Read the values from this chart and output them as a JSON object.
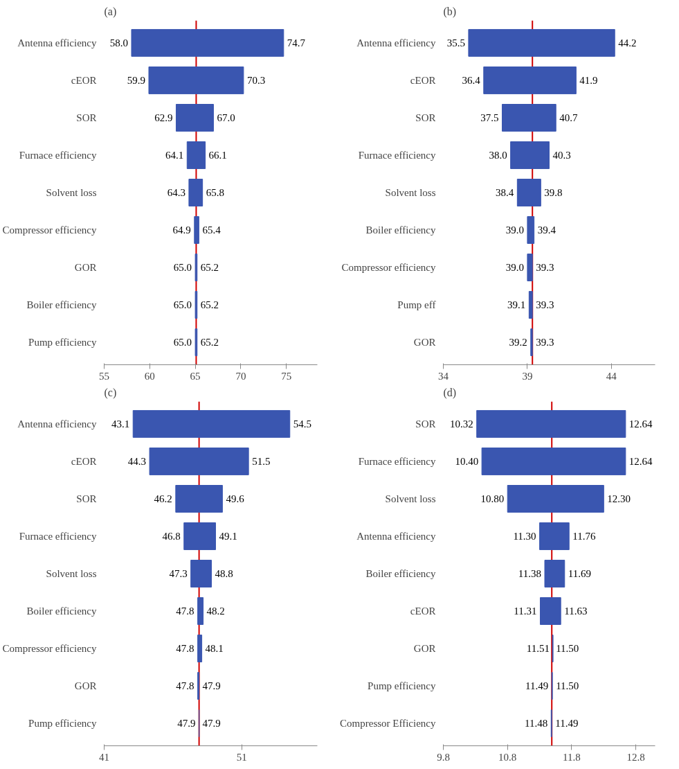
{
  "chart_data": [
    {
      "type": "bar",
      "orientation": "horizontal",
      "title": "(a)",
      "color": "#3a56b0",
      "categories": [
        "Antenna efficiency",
        "cEOR",
        "SOR",
        "Furnace efficiency",
        "Solvent loss",
        "Compressor efficiency",
        "GOR",
        "Boiler efficiency",
        "Pump efficiency"
      ],
      "base": [
        58.0,
        59.9,
        62.9,
        64.1,
        64.3,
        64.9,
        65.0,
        65.0,
        65.0
      ],
      "values": [
        16.7,
        10.4,
        4.1,
        2.0,
        1.5,
        0.5,
        0.2,
        0.2,
        0.2
      ],
      "xlim": [
        55,
        78.4
      ],
      "xticks": [
        55,
        60,
        65,
        70,
        75
      ],
      "ref_lines": [
        {
          "axis": "x",
          "value": 65.1,
          "color": "#d00000"
        }
      ],
      "annotations": [
        {
          "text": "58.0",
          "x": 58.0,
          "y": "Antenna efficiency"
        },
        {
          "text": "74.7",
          "x": 74.7,
          "y": "Antenna efficiency"
        },
        {
          "text": "59.9",
          "x": 59.9,
          "y": "cEOR"
        },
        {
          "text": "70.3",
          "x": 70.3,
          "y": "cEOR"
        },
        {
          "text": "62.9",
          "x": 62.9,
          "y": "SOR"
        },
        {
          "text": "67.0",
          "x": 67.0,
          "y": "SOR"
        },
        {
          "text": "64.1",
          "x": 64.1,
          "y": "Furnace efficiency"
        },
        {
          "text": "66.1",
          "x": 66.1,
          "y": "Furnace efficiency"
        },
        {
          "text": "64.3",
          "x": 64.3,
          "y": "Solvent loss"
        },
        {
          "text": "65.8",
          "x": 65.8,
          "y": "Solvent loss"
        },
        {
          "text": "64.9",
          "x": 64.9,
          "y": "Compressor efficiency"
        },
        {
          "text": "65.4",
          "x": 65.4,
          "y": "Compressor efficiency"
        },
        {
          "text": "65.0",
          "x": 65.0,
          "y": "GOR"
        },
        {
          "text": "65.2",
          "x": 65.2,
          "y": "GOR"
        },
        {
          "text": "65.0",
          "x": 65.0,
          "y": "Boiler efficiency"
        },
        {
          "text": "65.2",
          "x": 65.2,
          "y": "Boiler efficiency"
        },
        {
          "text": "65.0",
          "x": 65.0,
          "y": "Pump efficiency"
        },
        {
          "text": "65.2",
          "x": 65.2,
          "y": "Pump efficiency"
        }
      ]
    },
    {
      "type": "bar",
      "orientation": "horizontal",
      "title": "(b)",
      "color": "#3a56b0",
      "categories": [
        "Antenna efficiency",
        "cEOR",
        "SOR",
        "Furnace efficiency",
        "Solvent loss",
        "Boiler efficiency",
        "Compressor efficiency",
        "Pump eff",
        "GOR"
      ],
      "base": [
        35.5,
        36.4,
        37.5,
        38.0,
        38.4,
        39.0,
        39.0,
        39.1,
        39.2
      ],
      "values": [
        8.7,
        5.5,
        3.2,
        2.3,
        1.4,
        0.4,
        0.3,
        0.2,
        0.1
      ],
      "xlim": [
        34,
        46.6
      ],
      "xticks": [
        34,
        39,
        44
      ],
      "ref_lines": [
        {
          "axis": "x",
          "value": 39.3,
          "color": "#d00000"
        }
      ],
      "annotations": [
        {
          "text": "35.5",
          "x": 35.5,
          "y": "Antenna efficiency"
        },
        {
          "text": "44.2",
          "x": 44.2,
          "y": "Antenna efficiency"
        },
        {
          "text": "36.4",
          "x": 36.4,
          "y": "cEOR"
        },
        {
          "text": "41.9",
          "x": 41.9,
          "y": "cEOR"
        },
        {
          "text": "37.5",
          "x": 37.5,
          "y": "SOR"
        },
        {
          "text": "40.7",
          "x": 40.7,
          "y": "SOR"
        },
        {
          "text": "38.0",
          "x": 38.0,
          "y": "Furnace efficiency"
        },
        {
          "text": "40.3",
          "x": 40.3,
          "y": "Furnace efficiency"
        },
        {
          "text": "38.4",
          "x": 38.4,
          "y": "Solvent loss"
        },
        {
          "text": "39.8",
          "x": 39.8,
          "y": "Solvent loss"
        },
        {
          "text": "39.0",
          "x": 39.0,
          "y": "Boiler efficiency"
        },
        {
          "text": "39.4",
          "x": 39.4,
          "y": "Boiler efficiency"
        },
        {
          "text": "39.0",
          "x": 39.0,
          "y": "Compressor efficiency"
        },
        {
          "text": "39.3",
          "x": 39.3,
          "y": "Compressor efficiency"
        },
        {
          "text": "39.1",
          "x": 39.1,
          "y": "Pump eff"
        },
        {
          "text": "39.3",
          "x": 39.3,
          "y": "Pump eff"
        },
        {
          "text": "39.2",
          "x": 39.2,
          "y": "GOR"
        },
        {
          "text": "39.3",
          "x": 39.3,
          "y": "GOR"
        }
      ]
    },
    {
      "type": "bar",
      "orientation": "horizontal",
      "title": "(c)",
      "color": "#3a56b0",
      "categories": [
        "Antenna efficiency",
        "cEOR",
        "SOR",
        "Furnace efficiency",
        "Solvent loss",
        "Boiler efficiency",
        "Compressor efficiency",
        "GOR",
        "Pump efficiency"
      ],
      "base": [
        43.1,
        44.3,
        46.2,
        46.8,
        47.3,
        47.8,
        47.8,
        47.8,
        47.9
      ],
      "values": [
        11.4,
        7.2,
        3.4,
        2.3,
        1.5,
        0.4,
        0.3,
        0.1,
        0.0
      ],
      "xlim": [
        41,
        56.5
      ],
      "xticks": [
        41,
        51
      ],
      "ref_lines": [
        {
          "axis": "x",
          "value": 47.9,
          "color": "#d00000"
        }
      ],
      "annotations": [
        {
          "text": "43.1",
          "x": 43.1,
          "y": "Antenna efficiency"
        },
        {
          "text": "54.5",
          "x": 54.5,
          "y": "Antenna efficiency"
        },
        {
          "text": "44.3",
          "x": 44.3,
          "y": "cEOR"
        },
        {
          "text": "51.5",
          "x": 51.5,
          "y": "cEOR"
        },
        {
          "text": "46.2",
          "x": 46.2,
          "y": "SOR"
        },
        {
          "text": "49.6",
          "x": 49.6,
          "y": "SOR"
        },
        {
          "text": "46.8",
          "x": 46.8,
          "y": "Furnace efficiency"
        },
        {
          "text": "49.1",
          "x": 49.1,
          "y": "Furnace efficiency"
        },
        {
          "text": "47.3",
          "x": 47.3,
          "y": "Solvent loss"
        },
        {
          "text": "48.8",
          "x": 48.8,
          "y": "Solvent loss"
        },
        {
          "text": "47.8",
          "x": 47.8,
          "y": "Boiler efficiency"
        },
        {
          "text": "48.2",
          "x": 48.2,
          "y": "Boiler efficiency"
        },
        {
          "text": "47.8",
          "x": 47.8,
          "y": "Compressor efficiency"
        },
        {
          "text": "48.1",
          "x": 48.1,
          "y": "Compressor efficiency"
        },
        {
          "text": "47.8",
          "x": 47.8,
          "y": "GOR"
        },
        {
          "text": "47.9",
          "x": 47.9,
          "y": "GOR"
        },
        {
          "text": "47.9",
          "x": 47.9,
          "y": "Pump efficiency"
        },
        {
          "text": "47.9",
          "x": 47.9,
          "y": "Pump efficiency"
        }
      ]
    },
    {
      "type": "bar",
      "orientation": "horizontal",
      "title": "(d)",
      "color": "#3a56b0",
      "categories": [
        "SOR",
        "Furnace efficiency",
        "Solvent loss",
        "Antenna efficiency",
        "Boiler efficiency",
        "cEOR",
        "GOR",
        "Pump efficiency",
        "Compressor Efficiency"
      ],
      "base": [
        10.32,
        10.4,
        10.8,
        11.3,
        11.38,
        11.31,
        11.5,
        11.49,
        11.48
      ],
      "values": [
        2.32,
        2.24,
        1.5,
        0.46,
        0.31,
        0.32,
        0.01,
        0.01,
        0.01
      ],
      "xlim": [
        9.8,
        13.1
      ],
      "xticks": [
        9.8,
        10.8,
        11.8,
        12.8
      ],
      "ref_lines": [
        {
          "axis": "x",
          "value": 11.49,
          "color": "#d00000"
        }
      ],
      "annotations": [
        {
          "text": "10.32",
          "x": 10.32,
          "y": "SOR"
        },
        {
          "text": "12.64",
          "x": 12.64,
          "y": "SOR"
        },
        {
          "text": "10.40",
          "x": 10.4,
          "y": "Furnace efficiency"
        },
        {
          "text": "12.64",
          "x": 12.64,
          "y": "Furnace efficiency"
        },
        {
          "text": "10.80",
          "x": 10.8,
          "y": "Solvent loss"
        },
        {
          "text": "12.30",
          "x": 12.3,
          "y": "Solvent loss"
        },
        {
          "text": "11.30",
          "x": 11.3,
          "y": "Antenna efficiency"
        },
        {
          "text": "11.76",
          "x": 11.76,
          "y": "Antenna efficiency"
        },
        {
          "text": "11.38",
          "x": 11.38,
          "y": "Boiler efficiency"
        },
        {
          "text": "11.69",
          "x": 11.69,
          "y": "Boiler efficiency"
        },
        {
          "text": "11.31",
          "x": 11.31,
          "y": "cEOR"
        },
        {
          "text": "11.63",
          "x": 11.63,
          "y": "cEOR"
        },
        {
          "text": "11.51",
          "x": 11.51,
          "y": "GOR"
        },
        {
          "text": "11.50",
          "x": 11.5,
          "y": "GOR"
        },
        {
          "text": "11.49",
          "x": 11.49,
          "y": "Pump efficiency"
        },
        {
          "text": "11.50",
          "x": 11.5,
          "y": "Pump efficiency"
        },
        {
          "text": "11.48",
          "x": 11.48,
          "y": "Compressor Efficiency"
        },
        {
          "text": "11.49",
          "x": 11.49,
          "y": "Compressor Efficiency"
        }
      ]
    }
  ]
}
